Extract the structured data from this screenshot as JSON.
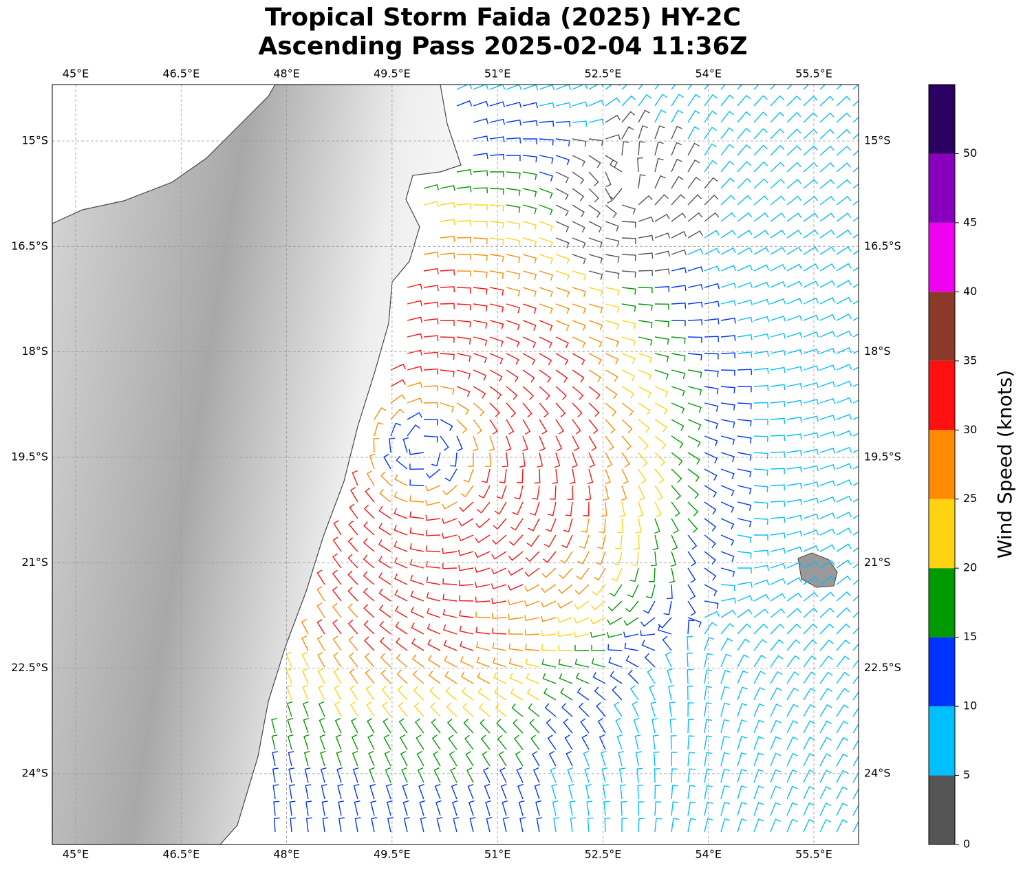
{
  "map": {
    "title": "Tropical Storm Faida (2025) HY-2C",
    "subtitle": "Ascending Pass 2025-02-04 11:36Z",
    "xlim": [
      44.667,
      56.136
    ],
    "ylim": [
      -25.008,
      -14.198
    ],
    "xticks": [
      {
        "value": 45,
        "label": "45°E"
      },
      {
        "value": 46.5,
        "label": "46.5°E"
      },
      {
        "value": 48,
        "label": "48°E"
      },
      {
        "value": 49.5,
        "label": "49.5°E"
      },
      {
        "value": 51,
        "label": "51°E"
      },
      {
        "value": 52.5,
        "label": "52.5°E"
      },
      {
        "value": 54,
        "label": "54°E"
      },
      {
        "value": 55.5,
        "label": "55.5°E"
      }
    ],
    "yticks": [
      {
        "value": -15,
        "label": "15°S"
      },
      {
        "value": -16.5,
        "label": "16.5°S"
      },
      {
        "value": -18,
        "label": "18°S"
      },
      {
        "value": -19.5,
        "label": "19.5°S"
      },
      {
        "value": -21,
        "label": "21°S"
      },
      {
        "value": -22.5,
        "label": "22.5°S"
      },
      {
        "value": -24,
        "label": "24°S"
      }
    ],
    "grid": true,
    "colorbar": {
      "label": "Wind Speed (knots)",
      "bounds": [
        0,
        5,
        10,
        15,
        20,
        25,
        30,
        35,
        40,
        45,
        50,
        55
      ],
      "colors": [
        "#555555",
        "#00bfff",
        "#0033ff",
        "#009900",
        "#ffd30f",
        "#ff8c00",
        "#ff1010",
        "#8b3a2a",
        "#f000f0",
        "#8800bb",
        "#2a0060"
      ],
      "ticks": [
        0,
        5,
        10,
        15,
        20,
        25,
        30,
        35,
        40,
        45,
        50
      ]
    }
  }
}
